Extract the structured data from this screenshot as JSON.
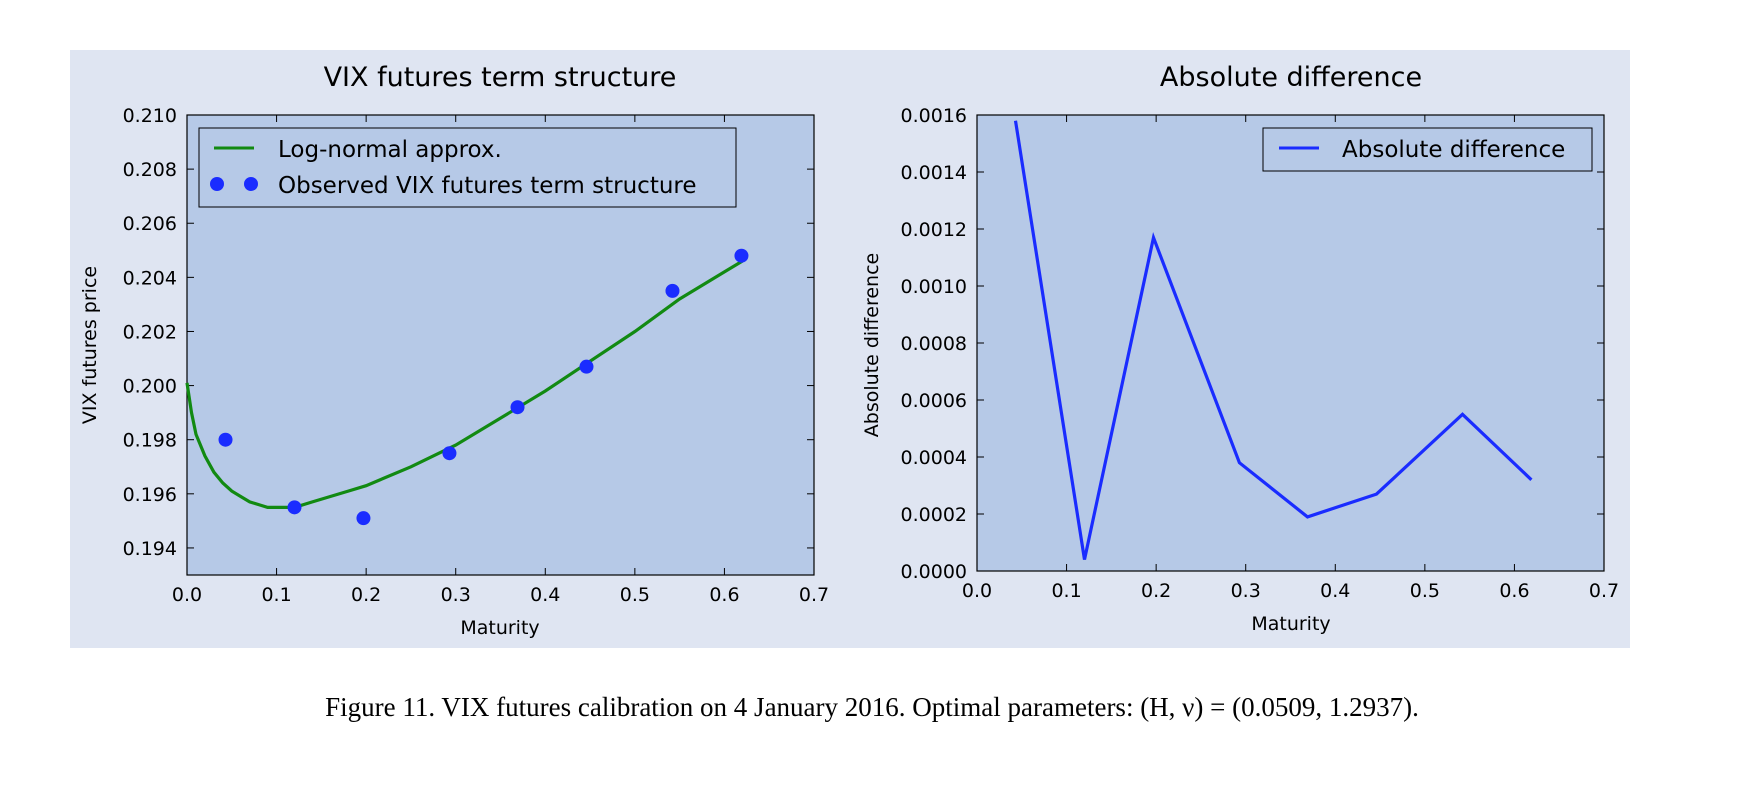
{
  "caption": "Figure 11.    VIX futures calibration on 4 January 2016. Optimal parameters: (H, ν) = (0.0509, 1.2937).",
  "colors": {
    "panel": "#dfe5f2",
    "plot": "#b6c9e7",
    "green": "#128a12",
    "blue": "#1a2cff"
  },
  "chart_data": [
    {
      "type": "line",
      "title": "VIX futures term structure",
      "xlabel": "Maturity",
      "ylabel": "VIX futures price",
      "xlim": [
        0.0,
        0.7
      ],
      "ylim": [
        0.193,
        0.21
      ],
      "xticks": [
        "0.0",
        "0.1",
        "0.2",
        "0.3",
        "0.4",
        "0.5",
        "0.6",
        "0.7"
      ],
      "yticks": [
        "0.194",
        "0.196",
        "0.198",
        "0.200",
        "0.202",
        "0.204",
        "0.206",
        "0.208",
        "0.210"
      ],
      "legend_position": "upper-left",
      "series": [
        {
          "name": "Log-normal approx.",
          "kind": "line",
          "color": "#128a12",
          "x": [
            0.0,
            0.005,
            0.01,
            0.02,
            0.03,
            0.04,
            0.05,
            0.06,
            0.07,
            0.08,
            0.09,
            0.1,
            0.11,
            0.12,
            0.14,
            0.16,
            0.18,
            0.2,
            0.25,
            0.3,
            0.35,
            0.4,
            0.45,
            0.5,
            0.55,
            0.6,
            0.62
          ],
          "y": [
            0.2001,
            0.199,
            0.1982,
            0.1974,
            0.1968,
            0.1964,
            0.1961,
            0.1959,
            0.1957,
            0.1956,
            0.1955,
            0.1955,
            0.1955,
            0.1955,
            0.1957,
            0.1959,
            0.1961,
            0.1963,
            0.197,
            0.1978,
            0.1988,
            0.1998,
            0.2009,
            0.202,
            0.2032,
            0.2042,
            0.2046
          ]
        },
        {
          "name": "Observed VIX futures term structure",
          "kind": "scatter",
          "color": "#1a2cff",
          "x": [
            0.043,
            0.12,
            0.197,
            0.293,
            0.369,
            0.446,
            0.542,
            0.619
          ],
          "y": [
            0.198,
            0.1955,
            0.1951,
            0.1975,
            0.1992,
            0.2007,
            0.2035,
            0.2048
          ]
        }
      ]
    },
    {
      "type": "line",
      "title": "Absolute difference",
      "xlabel": "Maturity",
      "ylabel": "Absolute difference",
      "xlim": [
        0.0,
        0.7
      ],
      "ylim": [
        0.0,
        0.0016
      ],
      "xticks": [
        "0.0",
        "0.1",
        "0.2",
        "0.3",
        "0.4",
        "0.5",
        "0.6",
        "0.7"
      ],
      "yticks": [
        "0.0000",
        "0.0002",
        "0.0004",
        "0.0006",
        "0.0008",
        "0.0010",
        "0.0012",
        "0.0014",
        "0.0016"
      ],
      "legend_position": "upper-right",
      "series": [
        {
          "name": "Absolute difference",
          "kind": "line",
          "color": "#1a2cff",
          "x": [
            0.043,
            0.12,
            0.197,
            0.293,
            0.369,
            0.446,
            0.542,
            0.619
          ],
          "y": [
            0.00158,
            4e-05,
            0.00117,
            0.00038,
            0.00019,
            0.00027,
            0.00055,
            0.00032
          ]
        }
      ]
    }
  ]
}
